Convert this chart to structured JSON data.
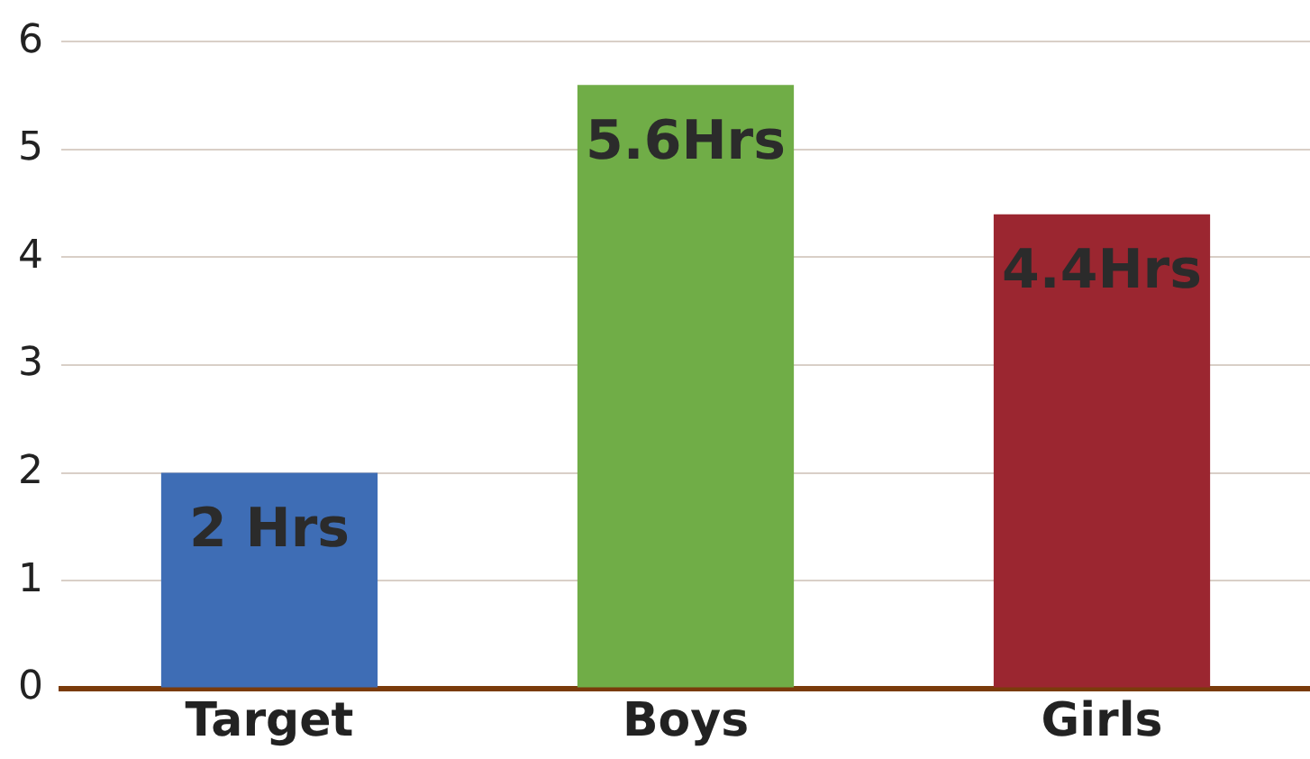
{
  "chart_data": {
    "type": "bar",
    "categories": [
      "Target",
      "Boys",
      "Girls"
    ],
    "values": [
      2,
      5.6,
      4.4
    ],
    "colors": [
      "#3e6db5",
      "#70ad47",
      "#9b2630"
    ],
    "value_labels": [
      "2 Hrs",
      "5.6Hrs",
      "4.4Hrs"
    ],
    "ylim": [
      0,
      6
    ],
    "yticks": [
      0,
      1,
      2,
      3,
      4,
      5,
      6
    ],
    "grid": "y",
    "legend": false
  }
}
